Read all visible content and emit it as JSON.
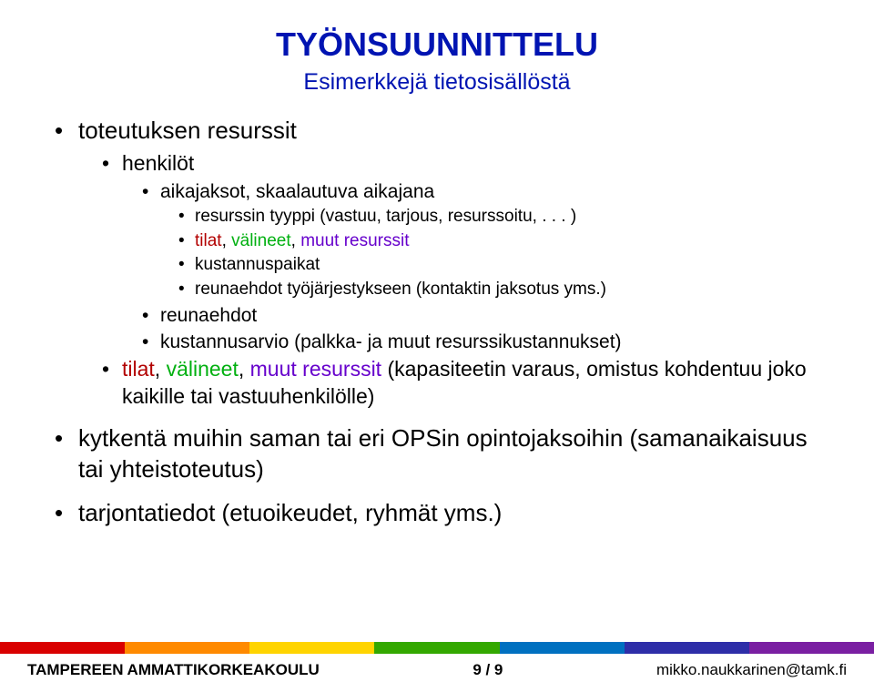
{
  "colors": {
    "title": "#0014b2",
    "subtitle": "#0014b2",
    "text": "#000000",
    "hl_tilat": "#b20000",
    "hl_valineet": "#00b010",
    "hl_muut": "#6600cc",
    "stripes": [
      "#d90000",
      "#ff8a00",
      "#ffd400",
      "#33a800",
      "#0070c0",
      "#2e2ea8",
      "#7a1fa2"
    ]
  },
  "title": "TYÖNSUUNNITTELU",
  "subtitle": "Esimerkkejä tietosisällöstä",
  "content": {
    "i0": {
      "text": "toteutuksen resurssit",
      "c0": {
        "text": "henkilöt",
        "g0": {
          "text": "aikajaksot, skaalautuva aikajana",
          "h0": {
            "text": "resurssin tyyppi (vastuu, tarjous, resurssoitu, . . . )"
          },
          "h1": {
            "p0": "tilat",
            "sep0": ", ",
            "p1": "välineet",
            "sep1": ", ",
            "p2": "muut resurssit"
          },
          "h2": {
            "text": "kustannuspaikat"
          },
          "h3": {
            "text": "reunaehdot työjärjestykseen (kontaktin jaksotus yms.)"
          }
        },
        "g1": {
          "text": "reunaehdot"
        },
        "g2": {
          "text": "kustannusarvio (palkka- ja muut resurssikustannukset)"
        }
      },
      "c1": {
        "p0": "tilat",
        "sep0": ", ",
        "p1": "välineet",
        "sep1": ", ",
        "p2": "muut resurssit",
        "tail": " (kapasiteetin varaus, omistus kohdentuu joko kaikille tai vastuuhenkilölle)"
      }
    },
    "i1": {
      "text": "kytkentä muihin saman tai eri OPSin opintojaksoihin (samanaikaisuus tai yhteistoteutus)"
    },
    "i2": {
      "text": "tarjontatiedot (etuoikeudet, ryhmät yms.)"
    }
  },
  "footer": {
    "left": "TAMPEREEN AMMATTIKORKEAKOULU",
    "center": "9 / 9",
    "right": "mikko.naukkarinen@tamk.fi"
  }
}
